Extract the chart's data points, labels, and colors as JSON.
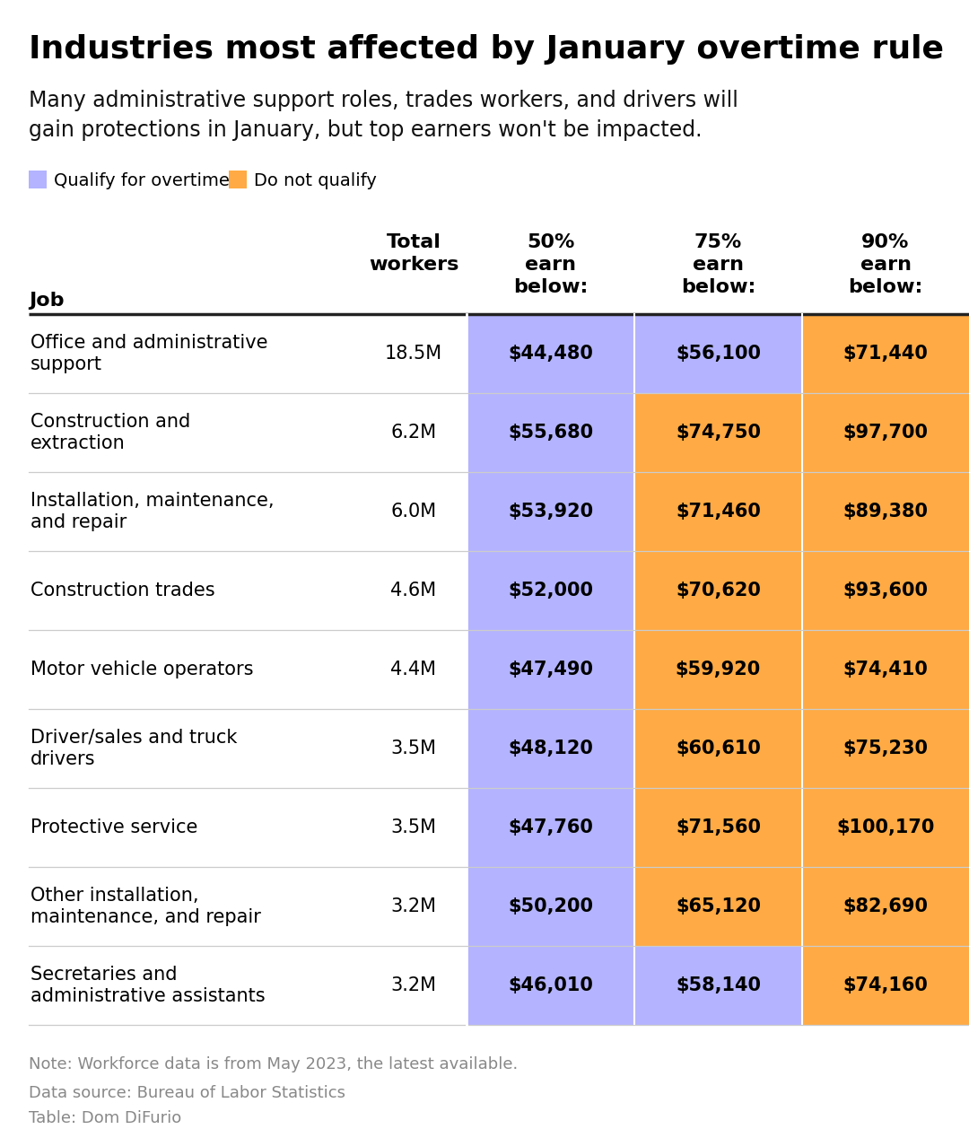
{
  "title": "Industries most affected by January overtime rule",
  "subtitle": "Many administrative support roles, trades workers, and drivers will\ngain protections in January, but top earners won't be impacted.",
  "legend_qualify": "Qualify for overtime",
  "legend_not_qualify": "Do not qualify",
  "color_qualify": "#b3b3ff",
  "color_not_qualify": "#ffaa44",
  "bg_color": "#ffffff",
  "header_col0": "Job",
  "header_col1": "Total\nworkers",
  "header_col2": "50%\nearn\nbelow:",
  "header_col3": "75%\nearn\nbelow:",
  "header_col4": "90%\nearn\nbelow:",
  "note": "Note: Workforce data is from May 2023, the latest available.",
  "source": "Data source: Bureau of Labor Statistics",
  "table_credit": "Table: Dom DiFurio",
  "rows": [
    {
      "job": "Office and administrative\nsupport",
      "workers": "18.5M",
      "p50": "$44,480",
      "p75": "$56,100",
      "p90": "$71,440",
      "colors": [
        "qualify",
        "qualify",
        "not_qualify"
      ]
    },
    {
      "job": "Construction and\nextraction",
      "workers": "6.2M",
      "p50": "$55,680",
      "p75": "$74,750",
      "p90": "$97,700",
      "colors": [
        "qualify",
        "not_qualify",
        "not_qualify"
      ]
    },
    {
      "job": "Installation, maintenance,\nand repair",
      "workers": "6.0M",
      "p50": "$53,920",
      "p75": "$71,460",
      "p90": "$89,380",
      "colors": [
        "qualify",
        "not_qualify",
        "not_qualify"
      ]
    },
    {
      "job": "Construction trades",
      "workers": "4.6M",
      "p50": "$52,000",
      "p75": "$70,620",
      "p90": "$93,600",
      "colors": [
        "qualify",
        "not_qualify",
        "not_qualify"
      ]
    },
    {
      "job": "Motor vehicle operators",
      "workers": "4.4M",
      "p50": "$47,490",
      "p75": "$59,920",
      "p90": "$74,410",
      "colors": [
        "qualify",
        "not_qualify",
        "not_qualify"
      ]
    },
    {
      "job": "Driver/sales and truck\ndrivers",
      "workers": "3.5M",
      "p50": "$48,120",
      "p75": "$60,610",
      "p90": "$75,230",
      "colors": [
        "qualify",
        "not_qualify",
        "not_qualify"
      ]
    },
    {
      "job": "Protective service",
      "workers": "3.5M",
      "p50": "$47,760",
      "p75": "$71,560",
      "p90": "$100,170",
      "colors": [
        "qualify",
        "not_qualify",
        "not_qualify"
      ]
    },
    {
      "job": "Other installation,\nmaintenance, and repair",
      "workers": "3.2M",
      "p50": "$50,200",
      "p75": "$65,120",
      "p90": "$82,690",
      "colors": [
        "qualify",
        "not_qualify",
        "not_qualify"
      ]
    },
    {
      "job": "Secretaries and\nadministrative assistants",
      "workers": "3.2M",
      "p50": "$46,010",
      "p75": "$58,140",
      "p90": "$74,160",
      "colors": [
        "qualify",
        "qualify",
        "not_qualify"
      ]
    }
  ]
}
